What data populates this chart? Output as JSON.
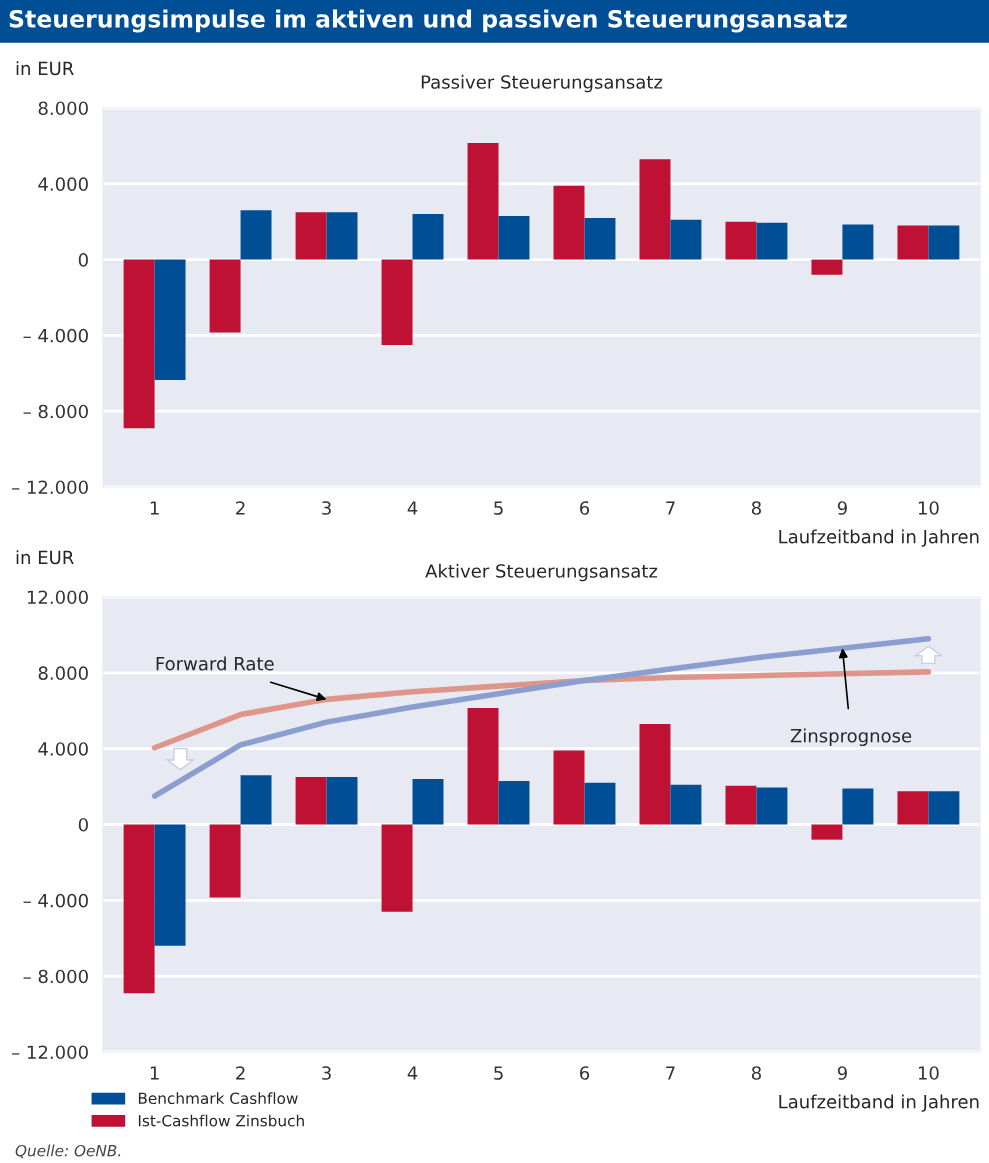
{
  "chart_data": [
    {
      "type": "bar",
      "title": "Steuerungsimpulse im aktiven und passiven Steuerungsansatz",
      "subtitle": "Passiver Steuerungsansatz",
      "ylabel": "in EUR",
      "xlabel": "Laufzeitband in Jahren",
      "categories": [
        "1",
        "2",
        "3",
        "4",
        "5",
        "6",
        "7",
        "8",
        "9",
        "10"
      ],
      "series": [
        {
          "color": "#be1134",
          "values": [
            -8900,
            -3850,
            2500,
            -4500,
            6150,
            3900,
            5300,
            2000,
            -800,
            1800
          ]
        },
        {
          "color": "#004f96",
          "values": [
            -6350,
            2600,
            2500,
            2400,
            2300,
            2200,
            2100,
            1950,
            1850,
            1800
          ]
        }
      ],
      "ylim": [
        -12000,
        8000
      ],
      "yticks": [
        {
          "value": -12000,
          "label": "– 12.000"
        },
        {
          "value": -8000,
          "label": "– 8.000"
        },
        {
          "value": -4000,
          "label": "– 4.000"
        },
        0,
        {
          "value": 4000,
          "label": "4.000"
        },
        {
          "value": 8000,
          "label": "8.000"
        }
      ],
      "grid": "y"
    },
    {
      "type": "bar",
      "subtitle": "Aktiver Steuerungsansatz",
      "ylabel": "in EUR",
      "xlabel": "Laufzeitband in Jahren",
      "categories": [
        "1",
        "2",
        "3",
        "4",
        "5",
        "6",
        "7",
        "8",
        "9",
        "10"
      ],
      "series": [
        {
          "name": "Ist-Cashflow Zinsbuch",
          "color": "#be1134",
          "values": [
            -8900,
            -3850,
            2500,
            -4600,
            6150,
            3900,
            5300,
            2050,
            -800,
            1750
          ]
        },
        {
          "name": "Benchmark Cashflow",
          "color": "#004f96",
          "values": [
            -6400,
            2600,
            2500,
            2400,
            2300,
            2200,
            2100,
            1950,
            1900,
            1750
          ]
        },
        {
          "type": "line",
          "color": "#e0958a",
          "values": [
            4050,
            5800,
            6600,
            7000,
            7300,
            7600,
            7750,
            7850,
            7950,
            8050
          ]
        },
        {
          "type": "line",
          "color": "#8a9ecf",
          "values": [
            1500,
            4200,
            5400,
            6200,
            6900,
            7600,
            8200,
            8800,
            9300,
            9800
          ]
        }
      ],
      "ylim": [
        -12000,
        12000
      ],
      "yticks": [
        {
          "value": -12000,
          "label": "– 12.000"
        },
        {
          "value": -8000,
          "label": "– 8.000"
        },
        {
          "value": -4000,
          "label": "– 4.000"
        },
        0,
        {
          "value": 4000,
          "label": "4.000"
        },
        {
          "value": 8000,
          "label": "8.000"
        },
        {
          "value": 12000,
          "label": "12.000"
        }
      ],
      "grid": "y",
      "legend": "bottom left",
      "annotations": [
        {
          "text": "Forward Rate",
          "x": "3",
          "y": 6600
        },
        {
          "text": "Zinsprognose",
          "x": "9",
          "y": 9300
        },
        "Quelle: OeNB."
      ]
    }
  ]
}
